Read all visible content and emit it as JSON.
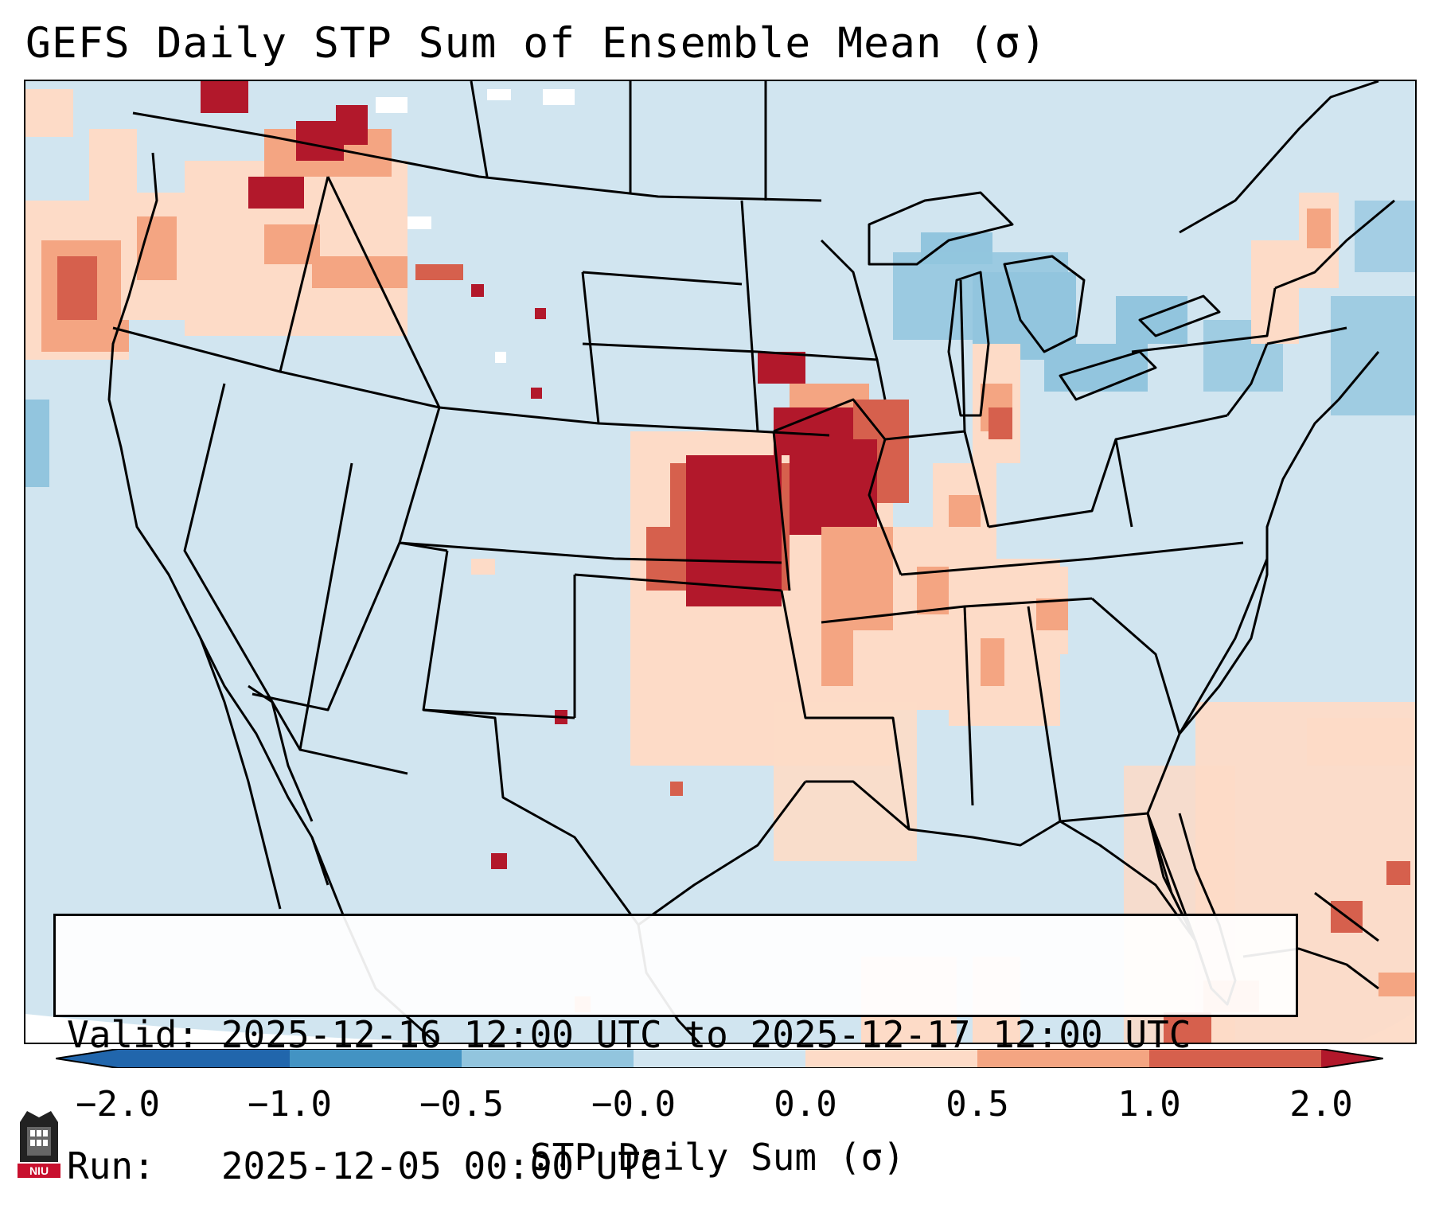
{
  "title": "GEFS Daily STP Sum of Ensemble Mean (σ)",
  "info": {
    "valid": "Valid: 2025-12-16 12:00 UTC to 2025-12-17 12:00 UTC",
    "run": "Run:   2025-12-05 00:00 UTC"
  },
  "colorbar": {
    "label": "STP Daily Sum (σ)",
    "ticks": [
      "−2.0",
      "−1.0",
      "−0.5",
      "−0.0",
      "0.0",
      "0.5",
      "1.0",
      "2.0"
    ],
    "colors": [
      "#2166ac",
      "#4393c3",
      "#92c5de",
      "#d1e5f0",
      "#fddbc7",
      "#f4a582",
      "#d6604d",
      "#b2182b"
    ]
  },
  "colors": {
    "background": "#d1e5f0",
    "outline": "#000000"
  },
  "logo": {
    "text": "NIU",
    "icon": "niu-logo-icon"
  }
}
